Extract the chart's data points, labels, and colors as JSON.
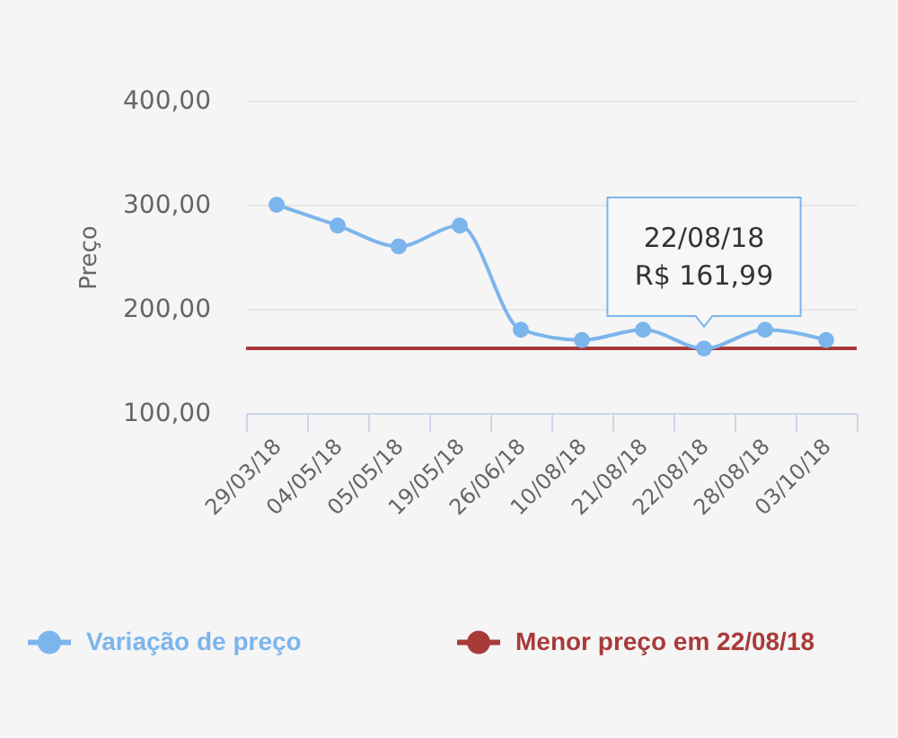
{
  "chart_data": {
    "type": "line",
    "ylabel": "Preço",
    "categories": [
      "29/03/18",
      "04/05/18",
      "05/05/18",
      "19/05/18",
      "26/06/18",
      "10/08/18",
      "21/08/18",
      "22/08/18",
      "28/08/18",
      "03/10/18"
    ],
    "series": [
      {
        "name": "Variação de preço",
        "color": "#7cb5ec",
        "values": [
          300,
          280,
          260,
          280,
          180,
          170,
          180,
          161.99,
          180,
          170
        ]
      }
    ],
    "ylim": [
      100,
      400
    ],
    "yticks": [
      {
        "value": 100,
        "label": "100,00"
      },
      {
        "value": 200,
        "label": "200,00"
      },
      {
        "value": 300,
        "label": "300,00"
      },
      {
        "value": 400,
        "label": "400,00"
      }
    ],
    "grid": "y",
    "marker": "circle",
    "line_style": "solid",
    "legend": "bottom",
    "ref_lines": [
      {
        "axis": "y",
        "value": 161.99,
        "label": "Menor preço em 22/08/18",
        "color": "#a93a3a"
      }
    ],
    "annotations": [
      {
        "text": "22/08/18\nR$ 161,99",
        "x": "22/08/18",
        "y": 161.99
      }
    ]
  }
}
